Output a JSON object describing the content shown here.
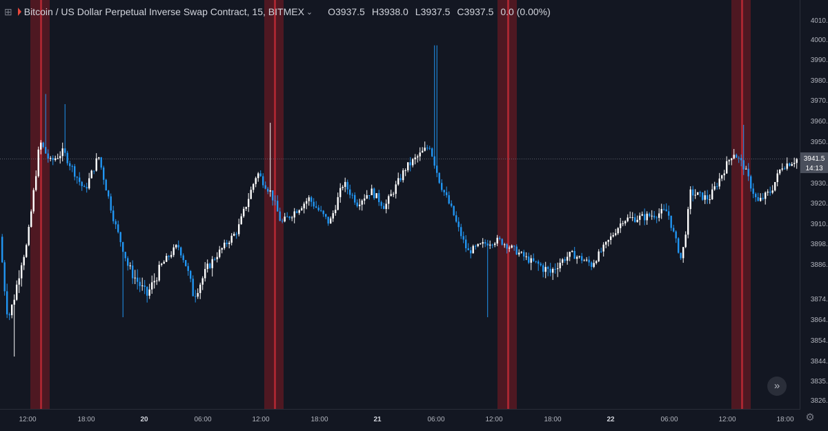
{
  "header": {
    "symbol": "Bitcoin / US Dollar Perpetual Inverse Swap Contract, 15, BITMEX",
    "ohlc": [
      {
        "key": "O",
        "value": "3937.5"
      },
      {
        "key": "H",
        "value": "3938.0"
      },
      {
        "key": "L",
        "value": "3937.5"
      },
      {
        "key": "C",
        "value": "3937.5"
      }
    ],
    "change": "0.0 (0.00%)",
    "expand_icon": "plus-square-icon",
    "flag_icon": "red-flag-icon",
    "dropdown_icon": "chevron-down-icon"
  },
  "price_axis": {
    "ticks": [
      "4010.0",
      "4000.0",
      "3990.0",
      "3980.0",
      "3970.0",
      "3960.0",
      "3950.0",
      "3940.0",
      "3930.0",
      "3920.0",
      "3910.0",
      "3898.0",
      "3886.0",
      "3874.0",
      "3864.0",
      "3854.0",
      "3844.0",
      "3835.0",
      "3826.0"
    ],
    "last_price": "3941.5",
    "countdown": "14:13"
  },
  "time_axis": {
    "ticks": [
      "12:00",
      "18:00",
      "20",
      "06:00",
      "12:00",
      "18:00",
      "21",
      "06:00",
      "12:00",
      "18:00",
      "22",
      "06:00",
      "12:00",
      "18:00"
    ]
  },
  "colors": {
    "background": "#131722",
    "up": "#ffffff",
    "down": "#2196f3",
    "highlight": "#801922",
    "highlight_line": "#b22833"
  },
  "controls": {
    "scroll_icon": "double-chevron-right-icon",
    "settings_icon": "gear-icon"
  },
  "chart_data": {
    "type": "candlestick",
    "timeframe": "15",
    "exchange": "BITMEX",
    "ylim": [
      3820,
      4015
    ],
    "x_day_labels": [
      "20",
      "21",
      "22"
    ],
    "last_price": 3941.5,
    "highlighted_sessions": [
      "12:00-14:00 (19th)",
      "12:00-14:00 (20th)",
      "12:00-14:00 (21st)",
      "12:00-14:00 (22nd)"
    ],
    "price_path_keypoints": [
      {
        "x": "start",
        "p": 3902
      },
      {
        "x": "~10:30",
        "p": 3864
      },
      {
        "x": "~11:30",
        "p": 3878
      },
      {
        "x": "~12:30",
        "p": 3895
      },
      {
        "x": "~13:00",
        "p": 3950
      },
      {
        "x": "~14:00",
        "p": 3940
      },
      {
        "x": "~16:00",
        "p": 3945
      },
      {
        "x": "~18:00",
        "p": 3926
      },
      {
        "x": "~19:00",
        "p": 3943
      },
      {
        "x": "~21:00",
        "p": 3915
      },
      {
        "x": "~23:00",
        "p": 3885
      },
      {
        "x": "~01:00",
        "p": 3875
      },
      {
        "x": "~03:30",
        "p": 3897
      },
      {
        "x": "~05:00",
        "p": 3875
      },
      {
        "x": "~06:30",
        "p": 3883
      },
      {
        "x": "~08:00",
        "p": 3893
      },
      {
        "x": "~10:00",
        "p": 3905
      },
      {
        "x": "~11:30",
        "p": 3935
      },
      {
        "x": "~13:30",
        "p": 3925
      },
      {
        "x": "~15:00",
        "p": 3910
      },
      {
        "x": "~17:00",
        "p": 3922
      },
      {
        "x": "~19:00",
        "p": 3910
      },
      {
        "x": "~21:00",
        "p": 3930
      },
      {
        "x": "~23:00",
        "p": 3920
      },
      {
        "x": "~01:00",
        "p": 3926
      },
      {
        "x": "~03:00",
        "p": 3918
      },
      {
        "x": "~04:00",
        "p": 3937
      },
      {
        "x": "~06:00",
        "p": 3948
      },
      {
        "x": "~07:00",
        "p": 3930
      },
      {
        "x": "~09:00",
        "p": 3914
      },
      {
        "x": "~10:00",
        "p": 3893
      },
      {
        "x": "~11:30",
        "p": 3898
      },
      {
        "x": "~12:30",
        "p": 3900
      },
      {
        "x": "~14:00",
        "p": 3895
      },
      {
        "x": "~16:00",
        "p": 3888
      },
      {
        "x": "~19:00",
        "p": 3883
      },
      {
        "x": "~21:00",
        "p": 3892
      },
      {
        "x": "~23:00",
        "p": 3886
      },
      {
        "x": "~01:00",
        "p": 3897
      },
      {
        "x": "~03:00",
        "p": 3912
      },
      {
        "x": "~05:00",
        "p": 3913
      },
      {
        "x": "~07:00",
        "p": 3916
      },
      {
        "x": "~08:30",
        "p": 3888
      },
      {
        "x": "~09:00",
        "p": 3925
      },
      {
        "x": "~11:00",
        "p": 3922
      },
      {
        "x": "~13:00",
        "p": 3945
      },
      {
        "x": "~15:00",
        "p": 3938
      },
      {
        "x": "~16:30",
        "p": 3920
      },
      {
        "x": "~17:30",
        "p": 3926
      },
      {
        "x": "~18:30",
        "p": 3938
      },
      {
        "x": "end",
        "p": 3941.5
      }
    ]
  }
}
